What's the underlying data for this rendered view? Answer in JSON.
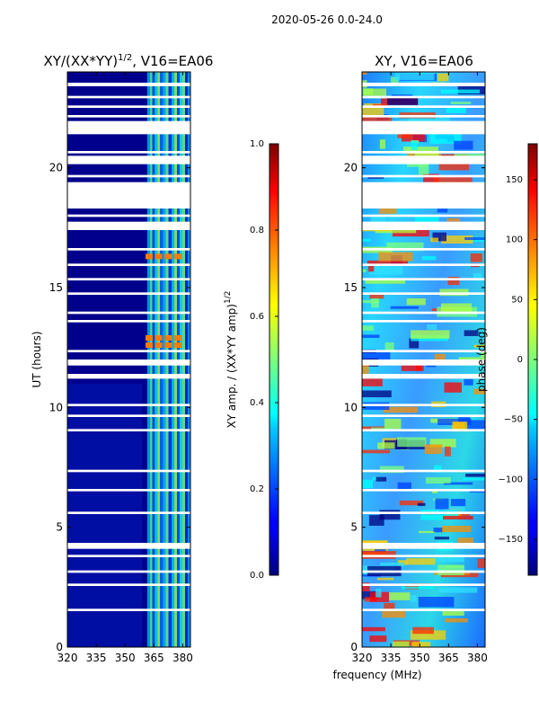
{
  "suptitle": "2020-05-26 0.0-24.0",
  "xlabel_shared": "frequency (MHz)",
  "chart_data": [
    {
      "type": "heatmap",
      "title_main": "XY/(XX*YY)",
      "title_sup": "1/2",
      "title_tail": ", V16=EA06",
      "ylabel": "UT (hours)",
      "xlim": [
        320,
        384
      ],
      "ylim": [
        0,
        24
      ],
      "x_ticks": [
        320,
        335,
        350,
        365,
        380
      ],
      "y_ticks": [
        0,
        5,
        10,
        15,
        20
      ],
      "colorbar": {
        "label_main": "XY amp. / (XX*YY amp)",
        "label_sup": "1/2",
        "range": [
          0.0,
          1.0
        ],
        "ticks": [
          "0.0",
          "0.2",
          "0.4",
          "0.6",
          "0.8",
          "1.0"
        ],
        "tick_values": [
          0.0,
          0.2,
          0.4,
          0.6,
          0.8,
          1.0
        ]
      }
    },
    {
      "type": "heatmap",
      "title": "XY, V16=EA06",
      "xlim": [
        320,
        384
      ],
      "ylim": [
        0,
        24
      ],
      "x_ticks": [
        320,
        335,
        350,
        365,
        380
      ],
      "y_ticks": [
        0,
        5,
        10,
        15,
        20
      ],
      "colorbar": {
        "label": "phase (deg)",
        "range": [
          -180,
          180
        ],
        "ticks": [
          "150",
          "100",
          "50",
          "0",
          "−50",
          "−100",
          "−150"
        ],
        "tick_values": [
          150,
          100,
          50,
          0,
          -50,
          -100,
          -150
        ]
      }
    }
  ],
  "flagged_gaps_hours": [
    [
      23.4,
      23.55
    ],
    [
      22.9,
      23.0
    ],
    [
      22.5,
      22.6
    ],
    [
      22.1,
      22.2
    ],
    [
      21.4,
      21.95
    ],
    [
      20.6,
      20.7
    ],
    [
      20.15,
      20.5
    ],
    [
      19.6,
      19.7
    ],
    [
      18.3,
      19.4
    ],
    [
      17.95,
      18.05
    ],
    [
      17.4,
      17.75
    ],
    [
      16.55,
      16.65
    ],
    [
      15.9,
      16.0
    ],
    [
      15.3,
      15.4
    ],
    [
      14.7,
      14.8
    ],
    [
      13.9,
      14.0
    ],
    [
      13.55,
      13.65
    ],
    [
      12.3,
      12.4
    ],
    [
      11.75,
      12.0
    ],
    [
      11.2,
      11.4
    ],
    [
      10.05,
      10.15
    ],
    [
      9.6,
      9.7
    ],
    [
      9.0,
      9.1
    ],
    [
      7.3,
      7.4
    ],
    [
      6.5,
      6.6
    ],
    [
      5.55,
      5.65
    ],
    [
      4.1,
      4.35
    ],
    [
      3.75,
      3.85
    ],
    [
      3.1,
      3.2
    ],
    [
      2.55,
      2.65
    ],
    [
      1.5,
      1.6
    ]
  ],
  "amp_bright_spots": [
    {
      "t": 16.3,
      "label": "strong"
    },
    {
      "t": 12.6,
      "label": "strong"
    },
    {
      "t": 12.9,
      "label": "strong"
    }
  ]
}
